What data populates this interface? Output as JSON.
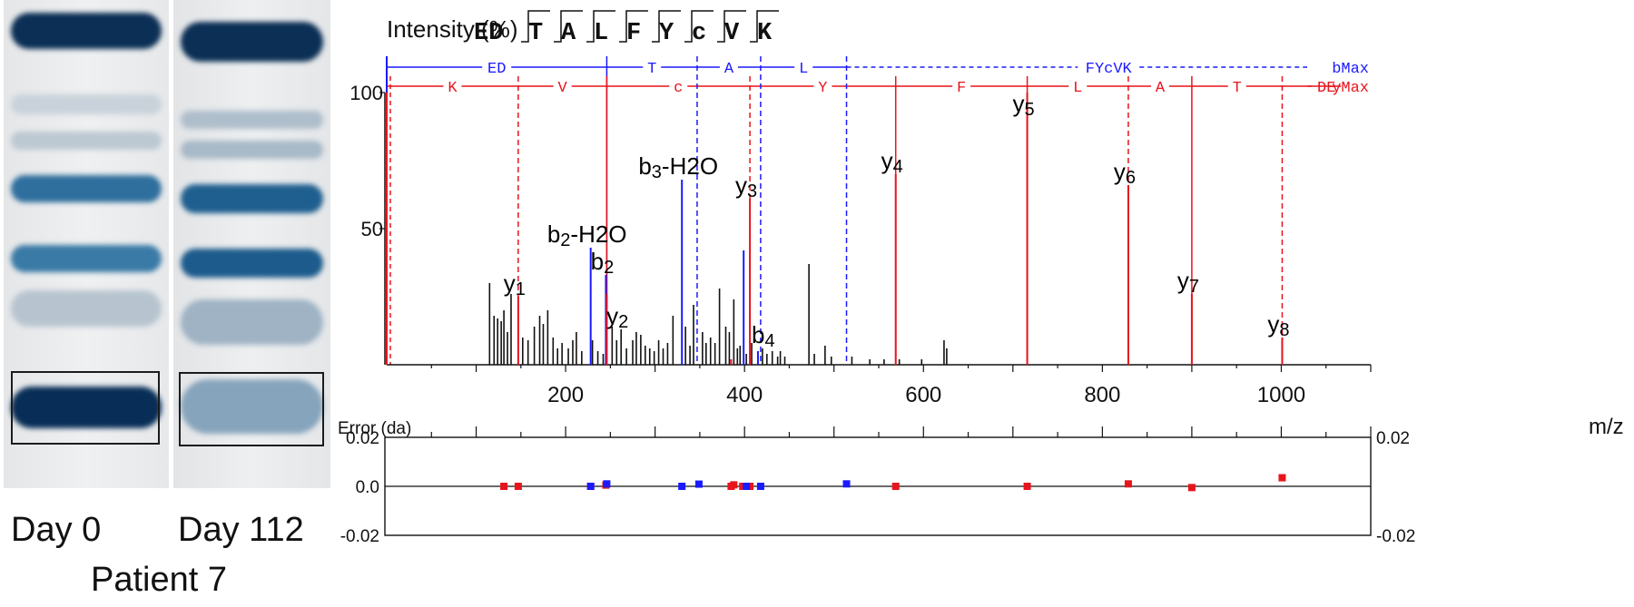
{
  "gel": {
    "lane_labels": [
      "Day 0",
      "Day 112"
    ],
    "caption": "Patient 7",
    "band_color": "#0b3a66"
  },
  "chart_data": {
    "type": "bar",
    "title": "Intensity (%)",
    "xlabel": "m/z",
    "xlim": [
      0,
      1100
    ],
    "ylim": [
      0,
      100
    ],
    "x_ticks": [
      200,
      400,
      600,
      800,
      1000
    ],
    "y_ticks": [
      50,
      100
    ],
    "sequence": [
      "ED",
      "T",
      "A",
      "L",
      "F",
      "Y",
      "c",
      "V",
      "K"
    ],
    "b_ladder": {
      "label": "bMax",
      "color": "#1a1aff",
      "segments": [
        "ED",
        "T",
        "A",
        "L",
        "FYcVK"
      ],
      "cuts": [
        246,
        347,
        418,
        514
      ],
      "dashed_after": 513
    },
    "y_ladder": {
      "label": "yMax",
      "color": "#e8141c",
      "segments": [
        "K",
        "V",
        "c",
        "Y",
        "F",
        "L",
        "A",
        "T",
        "DE"
      ],
      "cuts": [
        147,
        246,
        406,
        569,
        716,
        829,
        900,
        1001
      ],
      "dashed_cuts": [
        147,
        406,
        829,
        1001
      ]
    },
    "peaks_black": [
      [
        115,
        30
      ],
      [
        120,
        18
      ],
      [
        124,
        17
      ],
      [
        128,
        16
      ],
      [
        131,
        20
      ],
      [
        135,
        12
      ],
      [
        139,
        26
      ],
      [
        152,
        10
      ],
      [
        158,
        9
      ],
      [
        165,
        14
      ],
      [
        171,
        18
      ],
      [
        175,
        15
      ],
      [
        180,
        20
      ],
      [
        186,
        10
      ],
      [
        191,
        6
      ],
      [
        196,
        8
      ],
      [
        203,
        6
      ],
      [
        208,
        9
      ],
      [
        212,
        12
      ],
      [
        218,
        5
      ],
      [
        230,
        9
      ],
      [
        236,
        5
      ],
      [
        242,
        4
      ],
      [
        252,
        14
      ],
      [
        257,
        9
      ],
      [
        262,
        13
      ],
      [
        268,
        6
      ],
      [
        275,
        9
      ],
      [
        279,
        12
      ],
      [
        284,
        11
      ],
      [
        289,
        7
      ],
      [
        294,
        6
      ],
      [
        299,
        5
      ],
      [
        304,
        9
      ],
      [
        309,
        6
      ],
      [
        314,
        8
      ],
      [
        320,
        18
      ],
      [
        334,
        14
      ],
      [
        339,
        7
      ],
      [
        343,
        22
      ],
      [
        353,
        12
      ],
      [
        357,
        8
      ],
      [
        362,
        10
      ],
      [
        367,
        8
      ],
      [
        372,
        28
      ],
      [
        379,
        14
      ],
      [
        383,
        12
      ],
      [
        388,
        24
      ],
      [
        392,
        6
      ],
      [
        395,
        7
      ],
      [
        402,
        4
      ],
      [
        408,
        8
      ],
      [
        420,
        6
      ],
      [
        425,
        4
      ],
      [
        431,
        5
      ],
      [
        437,
        3
      ],
      [
        440,
        5
      ],
      [
        445,
        3
      ],
      [
        472,
        37
      ],
      [
        478,
        4
      ],
      [
        490,
        7
      ],
      [
        497,
        3
      ],
      [
        520,
        3
      ],
      [
        540,
        2
      ],
      [
        556,
        2
      ],
      [
        573,
        2
      ],
      [
        598,
        2
      ],
      [
        623,
        9
      ],
      [
        626,
        6
      ]
    ],
    "peaks_blue": [
      [
        0,
        100
      ],
      [
        228,
        43
      ],
      [
        245,
        33
      ],
      [
        330,
        68
      ],
      [
        399,
        42
      ],
      [
        415,
        5
      ]
    ],
    "peaks_red": [
      [
        0,
        100
      ],
      [
        147,
        25
      ],
      [
        246,
        26
      ],
      [
        385,
        2
      ],
      [
        406,
        61
      ],
      [
        569,
        70
      ],
      [
        716,
        100
      ],
      [
        829,
        66
      ],
      [
        900,
        26
      ],
      [
        1001,
        10
      ]
    ],
    "ion_labels": [
      {
        "ion": "y",
        "num": "1",
        "suffix": "",
        "x": 147,
        "y": 25,
        "color": "#000000"
      },
      {
        "ion": "b",
        "num": "2",
        "suffix": "-H2O",
        "x": 228,
        "y": 43,
        "color": "#000000"
      },
      {
        "ion": "b",
        "num": "2",
        "suffix": "",
        "x": 245,
        "y": 33,
        "color": "#000000"
      },
      {
        "ion": "y",
        "num": "2",
        "suffix": "",
        "x": 262,
        "y": 13,
        "color": "#000000"
      },
      {
        "ion": "b",
        "num": "3",
        "suffix": "-H2O",
        "x": 330,
        "y": 68,
        "color": "#000000"
      },
      {
        "ion": "y",
        "num": "3",
        "suffix": "",
        "x": 406,
        "y": 61,
        "color": "#000000"
      },
      {
        "ion": "b",
        "num": "4",
        "suffix": "",
        "x": 425,
        "y": 6,
        "color": "#000000"
      },
      {
        "ion": "y",
        "num": "4",
        "suffix": "",
        "x": 569,
        "y": 70,
        "color": "#000000"
      },
      {
        "ion": "y",
        "num": "5",
        "suffix": "",
        "x": 716,
        "y": 91,
        "color": "#000000"
      },
      {
        "ion": "y",
        "num": "6",
        "suffix": "",
        "x": 829,
        "y": 66,
        "color": "#000000"
      },
      {
        "ion": "y",
        "num": "7",
        "suffix": "",
        "x": 900,
        "y": 26,
        "color": "#000000"
      },
      {
        "ion": "y",
        "num": "8",
        "suffix": "",
        "x": 1001,
        "y": 10,
        "color": "#000000"
      }
    ],
    "error_panel": {
      "title": "Error (da)",
      "ylim": [
        -0.02,
        0.02
      ],
      "y_ticks": [
        0.02,
        0.0,
        -0.02
      ],
      "y_tick_labels": [
        "0.02",
        "0.0",
        "-0.02"
      ],
      "right_tick_labels": [
        "0.02",
        "-0.02"
      ],
      "points_red": [
        [
          131,
          0
        ],
        [
          147,
          0
        ],
        [
          228,
          0
        ],
        [
          245,
          0.0005
        ],
        [
          385,
          0
        ],
        [
          388,
          0.0006
        ],
        [
          398,
          0
        ],
        [
          406,
          0
        ],
        [
          569,
          0
        ],
        [
          716,
          0
        ],
        [
          829,
          0.001
        ],
        [
          900,
          -0.0005
        ],
        [
          1001,
          0.0035
        ]
      ],
      "points_blue": [
        [
          228,
          0
        ],
        [
          246,
          0.001
        ],
        [
          330,
          0
        ],
        [
          349,
          0.0009
        ],
        [
          402,
          0
        ],
        [
          418,
          0
        ],
        [
          514,
          0.001
        ]
      ]
    }
  }
}
